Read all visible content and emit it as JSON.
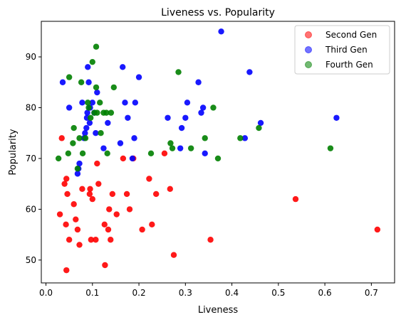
{
  "chart_data": {
    "type": "scatter",
    "title": "Liveness vs. Popularity",
    "xlabel": "Liveness",
    "ylabel": "Popularity",
    "xlim": [
      -0.01,
      0.75
    ],
    "ylim": [
      45.5,
      97
    ],
    "xticks": [
      0.0,
      0.1,
      0.2,
      0.3,
      0.4,
      0.5,
      0.6,
      0.7
    ],
    "xtick_labels": [
      "0.0",
      "0.1",
      "0.2",
      "0.3",
      "0.4",
      "0.5",
      "0.6",
      "0.7"
    ],
    "yticks": [
      50,
      60,
      70,
      80,
      90
    ],
    "ytick_labels": [
      "50",
      "60",
      "70",
      "80",
      "90"
    ],
    "grid": false,
    "legend_position": "top-right",
    "series": [
      {
        "name": "Second Gen",
        "color": "#ff0000",
        "points": [
          {
            "x": 0.034,
            "y": 74
          },
          {
            "x": 0.03,
            "y": 59
          },
          {
            "x": 0.04,
            "y": 65
          },
          {
            "x": 0.043,
            "y": 57
          },
          {
            "x": 0.044,
            "y": 66
          },
          {
            "x": 0.046,
            "y": 63
          },
          {
            "x": 0.05,
            "y": 54
          },
          {
            "x": 0.044,
            "y": 48
          },
          {
            "x": 0.06,
            "y": 61
          },
          {
            "x": 0.064,
            "y": 58
          },
          {
            "x": 0.068,
            "y": 56
          },
          {
            "x": 0.072,
            "y": 53
          },
          {
            "x": 0.078,
            "y": 64
          },
          {
            "x": 0.094,
            "y": 63
          },
          {
            "x": 0.095,
            "y": 64
          },
          {
            "x": 0.097,
            "y": 54
          },
          {
            "x": 0.1,
            "y": 62
          },
          {
            "x": 0.107,
            "y": 54
          },
          {
            "x": 0.11,
            "y": 69
          },
          {
            "x": 0.113,
            "y": 65
          },
          {
            "x": 0.126,
            "y": 57
          },
          {
            "x": 0.127,
            "y": 49
          },
          {
            "x": 0.134,
            "y": 56
          },
          {
            "x": 0.136,
            "y": 60
          },
          {
            "x": 0.139,
            "y": 54
          },
          {
            "x": 0.143,
            "y": 63
          },
          {
            "x": 0.152,
            "y": 59
          },
          {
            "x": 0.166,
            "y": 70
          },
          {
            "x": 0.174,
            "y": 63
          },
          {
            "x": 0.18,
            "y": 60
          },
          {
            "x": 0.188,
            "y": 70
          },
          {
            "x": 0.207,
            "y": 56
          },
          {
            "x": 0.222,
            "y": 66
          },
          {
            "x": 0.228,
            "y": 57
          },
          {
            "x": 0.237,
            "y": 63
          },
          {
            "x": 0.255,
            "y": 71
          },
          {
            "x": 0.267,
            "y": 64
          },
          {
            "x": 0.275,
            "y": 51
          },
          {
            "x": 0.354,
            "y": 54
          },
          {
            "x": 0.537,
            "y": 62
          },
          {
            "x": 0.713,
            "y": 56
          }
        ]
      },
      {
        "name": "Third Gen",
        "color": "#0000ff",
        "points": [
          {
            "x": 0.036,
            "y": 85
          },
          {
            "x": 0.05,
            "y": 80
          },
          {
            "x": 0.068,
            "y": 67
          },
          {
            "x": 0.07,
            "y": 68
          },
          {
            "x": 0.072,
            "y": 69
          },
          {
            "x": 0.078,
            "y": 81
          },
          {
            "x": 0.082,
            "y": 74
          },
          {
            "x": 0.084,
            "y": 75
          },
          {
            "x": 0.087,
            "y": 76
          },
          {
            "x": 0.088,
            "y": 78
          },
          {
            "x": 0.089,
            "y": 79
          },
          {
            "x": 0.09,
            "y": 88
          },
          {
            "x": 0.092,
            "y": 85
          },
          {
            "x": 0.094,
            "y": 77
          },
          {
            "x": 0.095,
            "y": 80
          },
          {
            "x": 0.1,
            "y": 81
          },
          {
            "x": 0.104,
            "y": 79
          },
          {
            "x": 0.107,
            "y": 75
          },
          {
            "x": 0.11,
            "y": 83
          },
          {
            "x": 0.124,
            "y": 72
          },
          {
            "x": 0.133,
            "y": 77
          },
          {
            "x": 0.16,
            "y": 73
          },
          {
            "x": 0.165,
            "y": 88
          },
          {
            "x": 0.17,
            "y": 81
          },
          {
            "x": 0.176,
            "y": 78
          },
          {
            "x": 0.186,
            "y": 70
          },
          {
            "x": 0.19,
            "y": 74
          },
          {
            "x": 0.192,
            "y": 81
          },
          {
            "x": 0.2,
            "y": 86
          },
          {
            "x": 0.262,
            "y": 78
          },
          {
            "x": 0.289,
            "y": 72
          },
          {
            "x": 0.292,
            "y": 76
          },
          {
            "x": 0.3,
            "y": 78
          },
          {
            "x": 0.304,
            "y": 81
          },
          {
            "x": 0.328,
            "y": 85
          },
          {
            "x": 0.334,
            "y": 79
          },
          {
            "x": 0.338,
            "y": 80
          },
          {
            "x": 0.342,
            "y": 71
          },
          {
            "x": 0.377,
            "y": 95
          },
          {
            "x": 0.428,
            "y": 74
          },
          {
            "x": 0.438,
            "y": 87
          },
          {
            "x": 0.462,
            "y": 77
          },
          {
            "x": 0.625,
            "y": 78
          }
        ]
      },
      {
        "name": "Fourth Gen",
        "color": "#008000",
        "points": [
          {
            "x": 0.027,
            "y": 70
          },
          {
            "x": 0.048,
            "y": 71
          },
          {
            "x": 0.05,
            "y": 86
          },
          {
            "x": 0.058,
            "y": 73
          },
          {
            "x": 0.06,
            "y": 76
          },
          {
            "x": 0.068,
            "y": 68
          },
          {
            "x": 0.072,
            "y": 74
          },
          {
            "x": 0.076,
            "y": 85
          },
          {
            "x": 0.079,
            "y": 71
          },
          {
            "x": 0.085,
            "y": 74
          },
          {
            "x": 0.09,
            "y": 81
          },
          {
            "x": 0.092,
            "y": 80
          },
          {
            "x": 0.096,
            "y": 78
          },
          {
            "x": 0.1,
            "y": 89
          },
          {
            "x": 0.104,
            "y": 79
          },
          {
            "x": 0.108,
            "y": 84
          },
          {
            "x": 0.108,
            "y": 92
          },
          {
            "x": 0.11,
            "y": 79
          },
          {
            "x": 0.116,
            "y": 81
          },
          {
            "x": 0.118,
            "y": 75
          },
          {
            "x": 0.124,
            "y": 79
          },
          {
            "x": 0.13,
            "y": 79
          },
          {
            "x": 0.132,
            "y": 71
          },
          {
            "x": 0.14,
            "y": 79
          },
          {
            "x": 0.146,
            "y": 84
          },
          {
            "x": 0.226,
            "y": 71
          },
          {
            "x": 0.268,
            "y": 73
          },
          {
            "x": 0.272,
            "y": 72
          },
          {
            "x": 0.285,
            "y": 87
          },
          {
            "x": 0.312,
            "y": 72
          },
          {
            "x": 0.342,
            "y": 74
          },
          {
            "x": 0.36,
            "y": 80
          },
          {
            "x": 0.37,
            "y": 70
          },
          {
            "x": 0.418,
            "y": 74
          },
          {
            "x": 0.458,
            "y": 76
          },
          {
            "x": 0.612,
            "y": 72
          }
        ]
      }
    ]
  }
}
